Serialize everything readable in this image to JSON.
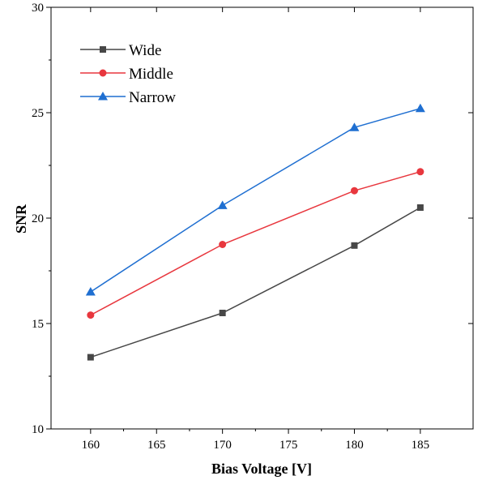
{
  "chart_data": {
    "type": "line",
    "title": "",
    "xlabel": "Bias Voltage [V]",
    "ylabel": "SNR",
    "x": [
      160,
      170,
      180,
      185
    ],
    "xlim": [
      157,
      189
    ],
    "ylim": [
      10,
      30
    ],
    "xticks": [
      160,
      165,
      170,
      175,
      180,
      185
    ],
    "yticks": [
      10,
      15,
      20,
      25,
      30
    ],
    "grid": false,
    "legend_position": "top-left",
    "series": [
      {
        "name": "Wide",
        "values": [
          13.4,
          15.5,
          18.7,
          20.5
        ],
        "color": "#474747",
        "marker": "square"
      },
      {
        "name": "Middle",
        "values": [
          15.4,
          18.75,
          21.3,
          22.2
        ],
        "color": "#e8373e",
        "marker": "circle"
      },
      {
        "name": "Narrow",
        "values": [
          16.5,
          20.6,
          24.3,
          25.2
        ],
        "color": "#1f6fd1",
        "marker": "triangle"
      }
    ]
  }
}
